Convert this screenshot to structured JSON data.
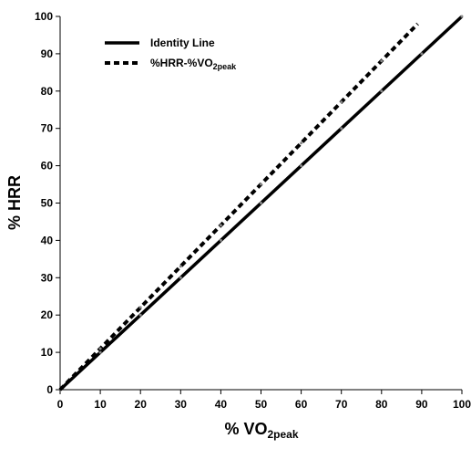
{
  "chart_data": {
    "type": "line",
    "xlabel": {
      "main": "% VO",
      "subscript": "2peak"
    },
    "ylabel": "% HRR",
    "xlim": [
      0,
      100
    ],
    "ylim": [
      0,
      100
    ],
    "x_ticks": [
      0,
      10,
      20,
      30,
      40,
      50,
      60,
      70,
      80,
      90,
      100
    ],
    "y_ticks": [
      0,
      10,
      20,
      30,
      40,
      50,
      60,
      70,
      80,
      90,
      100
    ],
    "grid": false,
    "legend_position": "top-left",
    "series": [
      {
        "name": "Identity Line",
        "name_subscript": "",
        "style": "solid",
        "color": "#000000",
        "x": [
          0,
          100
        ],
        "y": [
          0,
          100
        ]
      },
      {
        "name": "%HRR-%VO",
        "name_subscript": "2peak",
        "style": "dotted",
        "color": "#000000",
        "x": [
          0,
          89
        ],
        "y": [
          0,
          98
        ]
      }
    ]
  }
}
